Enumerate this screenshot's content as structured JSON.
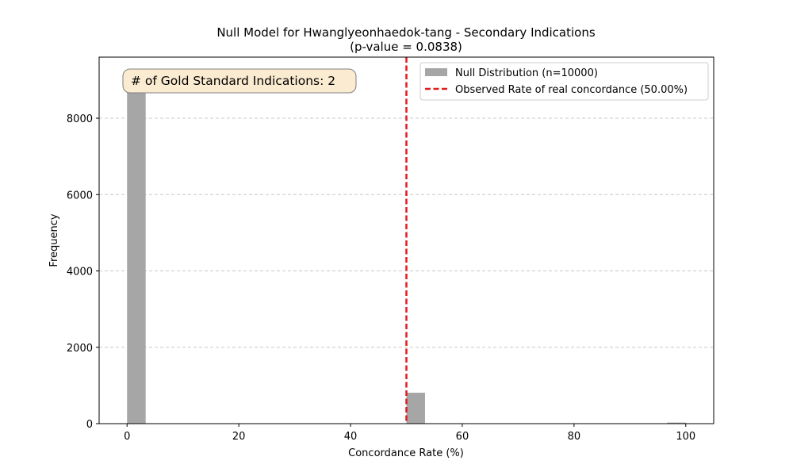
{
  "chart_data": {
    "type": "bar",
    "title": "Null Model for Hwanglyeonhaedok-tang - Secondary Indications",
    "subtitle": "(p-value = 0.0838)",
    "xlabel": "Concordance Rate (%)",
    "ylabel": "Frequency",
    "xlim": [
      -5,
      105
    ],
    "ylim": [
      0,
      9600
    ],
    "x_ticks": [
      0,
      20,
      40,
      60,
      80,
      100
    ],
    "y_ticks": [
      0,
      2000,
      4000,
      6000,
      8000
    ],
    "grid": "y-dashed",
    "bins": [
      {
        "x_start": 0.0,
        "x_end": 3.33,
        "count": 9162
      },
      {
        "x_start": 50.0,
        "x_end": 53.33,
        "count": 810
      },
      {
        "x_start": 96.67,
        "x_end": 100.0,
        "count": 28
      }
    ],
    "series": [
      {
        "name": "Null Distribution (n=10000)",
        "kind": "histogram",
        "color": "#a6a6a6"
      },
      {
        "name": "Observed Rate of real concordance (50.00%)",
        "kind": "vline",
        "x": 50.0,
        "color": "#e31a1c",
        "linestyle": "dashed"
      }
    ],
    "legend_position": "top-right",
    "annotation": {
      "text": "# of Gold Standard Indications: 2",
      "position": "top-left",
      "box_color": "#fbebd0"
    }
  }
}
